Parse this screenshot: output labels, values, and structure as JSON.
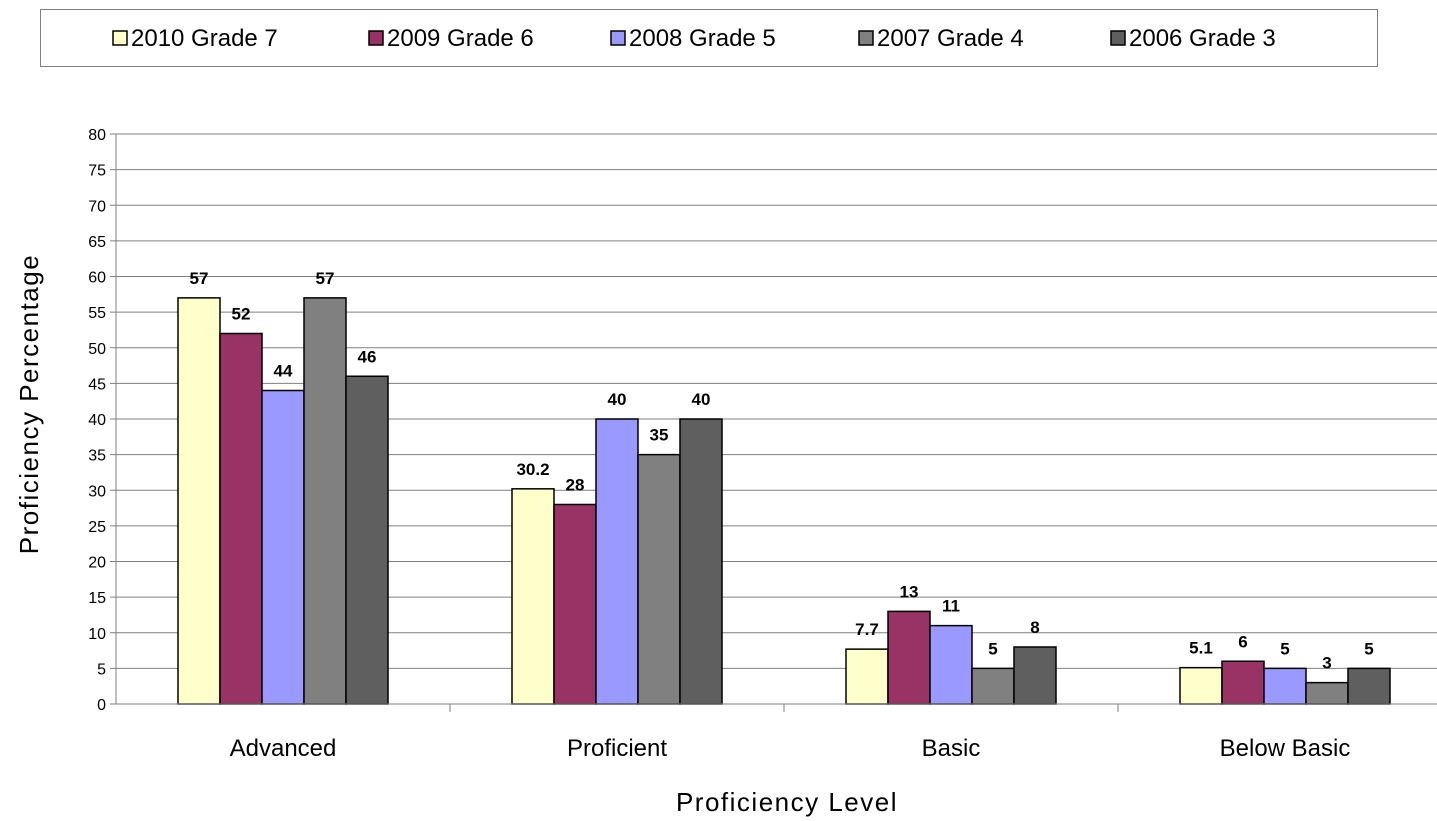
{
  "chart_data": {
    "type": "bar",
    "title": "",
    "xlabel": "Proficiency Level",
    "ylabel": "Proficiency Percentage",
    "categories": [
      "Advanced",
      "Proficient",
      "Basic",
      "Below Basic"
    ],
    "series": [
      {
        "name": "2010 Grade 7",
        "color": "#FFFFCC",
        "values": [
          57,
          30.2,
          7.7,
          5.1
        ],
        "labels": [
          "57",
          "30.2",
          "7.7",
          "5.1"
        ]
      },
      {
        "name": "2009 Grade 6",
        "color": "#993366",
        "values": [
          52,
          28,
          13,
          6
        ],
        "labels": [
          "52",
          "28",
          "13",
          "6"
        ]
      },
      {
        "name": "2008 Grade 5",
        "color": "#9999FF",
        "values": [
          44,
          40,
          11,
          5
        ],
        "labels": [
          "44",
          "40",
          "11",
          "5"
        ]
      },
      {
        "name": "2007 Grade 4",
        "color": "#808080",
        "values": [
          57,
          35,
          5,
          3
        ],
        "labels": [
          "57",
          "35",
          "5",
          "3"
        ]
      },
      {
        "name": "2006 Grade 3",
        "color": "#5F5F5F",
        "values": [
          46,
          40,
          8,
          5
        ],
        "labels": [
          "46",
          "40",
          "8",
          "5"
        ]
      }
    ],
    "ylim": [
      0,
      80
    ],
    "yticks": [
      "0",
      "5",
      "10",
      "15",
      "20",
      "25",
      "30",
      "35",
      "40",
      "45",
      "50",
      "55",
      "60",
      "65",
      "70",
      "75",
      "80"
    ],
    "grid": true,
    "legend_position": "top"
  }
}
